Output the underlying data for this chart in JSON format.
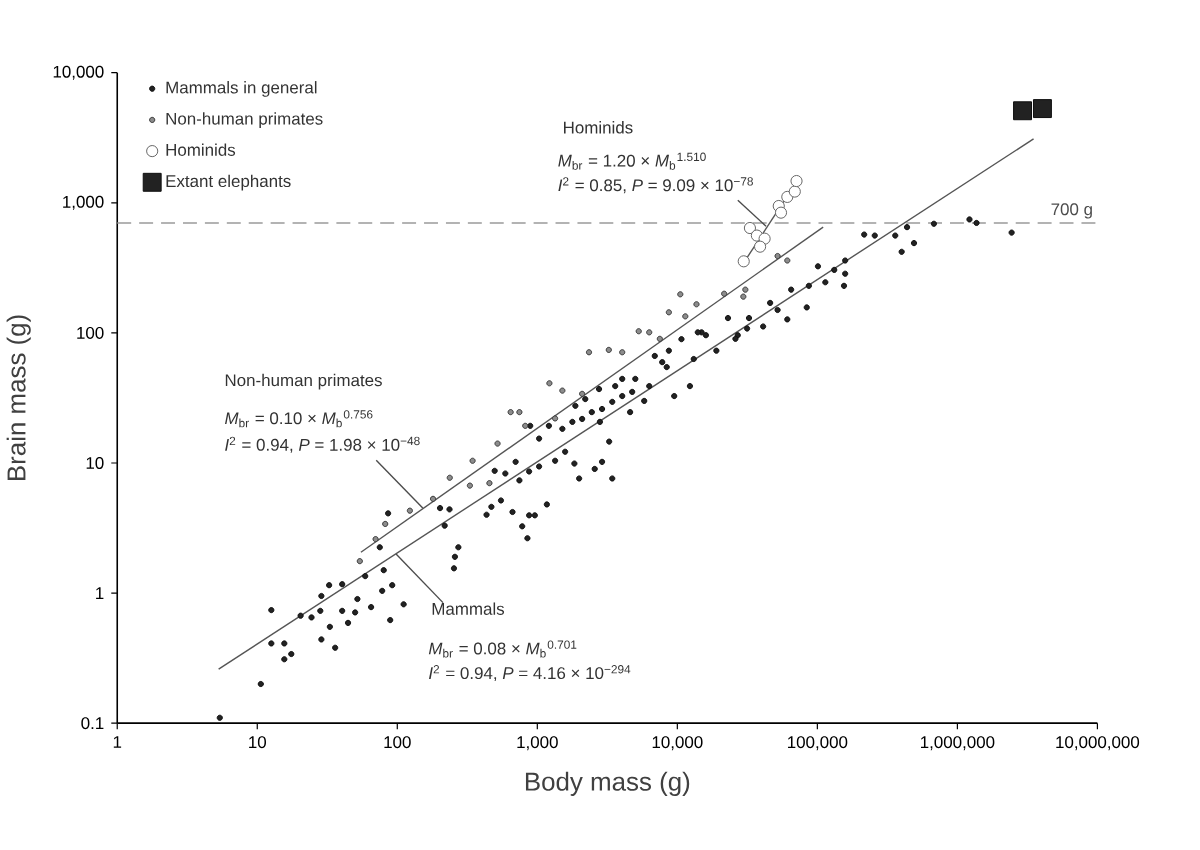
{
  "chart_data": {
    "type": "scatter",
    "xlabel": "Body mass (g)",
    "ylabel": "Brain mass (g)",
    "xlim": [
      1,
      10000000
    ],
    "ylim": [
      0.1,
      10000
    ],
    "xticks": [
      1,
      10,
      100,
      {
        "value": 1000,
        "label": "1,000"
      },
      {
        "value": 10000,
        "label": "10,000"
      },
      {
        "value": 100000,
        "label": "100,000"
      },
      {
        "value": 1000000,
        "label": "1,000,000"
      },
      {
        "value": 10000000,
        "label": "10,000,000"
      }
    ],
    "yticks": [
      0.1,
      1,
      10,
      100,
      {
        "value": 1000,
        "label": "1,000"
      },
      {
        "value": 10000,
        "label": "10,000"
      }
    ],
    "grid": false,
    "legend": "top left",
    "log": "xy",
    "series": [
      {
        "name": "Mammals in general",
        "marker": "circle",
        "color": "#222222",
        "x": [
          5.4,
          10.6,
          12.6,
          12.6,
          15.6,
          15.6,
          17.5,
          20.4,
          24.4,
          28.2,
          28.7,
          28.7,
          33,
          32.6,
          36,
          40.4,
          40.4,
          44.5,
          50,
          51.9,
          59,
          65,
          78,
          80,
          92,
          89,
          111,
          75,
          86,
          202,
          236,
          218,
          273,
          258,
          254,
          434,
          496,
          591,
          665,
          700,
          1990,
          3430,
          2570,
          2900,
          1840,
          874,
          780,
          850,
          960,
          1170,
          550,
          470,
          745,
          874,
          1030,
          1340,
          1580,
          1030,
          890,
          1210,
          1510,
          1780,
          2090,
          2450,
          2900,
          3430,
          4040,
          4760,
          5010,
          4040,
          3600,
          2760,
          2200,
          1870,
          2800,
          3260,
          4600,
          5800,
          6300,
          7800,
          8700,
          9500,
          12300,
          13100,
          14900,
          10700,
          8400,
          6900,
          2440000,
          1220000,
          1370000,
          680000,
          437000,
          360000,
          400000,
          490000,
          216000,
          257000,
          158000,
          158000,
          155000,
          132000,
          114000,
          101000,
          84000,
          87000,
          65000,
          61000,
          52000,
          46000,
          41000,
          32500,
          31500,
          27000,
          26000,
          23000,
          19000,
          16000,
          14000
        ],
        "values": [
          0.11,
          0.2,
          0.74,
          0.41,
          0.41,
          0.31,
          0.34,
          0.67,
          0.65,
          0.73,
          0.95,
          0.44,
          0.55,
          1.15,
          0.38,
          1.17,
          0.73,
          0.59,
          0.71,
          0.9,
          1.35,
          0.78,
          1.04,
          1.5,
          1.15,
          0.62,
          0.82,
          2.25,
          4.1,
          4.5,
          4.4,
          3.3,
          2.25,
          1.9,
          1.55,
          4.0,
          8.7,
          8.3,
          4.2,
          10.2,
          7.6,
          7.6,
          9.0,
          10.2,
          9.9,
          3.96,
          3.26,
          2.64,
          3.96,
          4.8,
          5.15,
          4.6,
          7.35,
          8.6,
          9.4,
          10.4,
          12.2,
          15.4,
          19.3,
          19.3,
          18.3,
          20.7,
          21.8,
          24.6,
          26,
          29.5,
          32.7,
          35.2,
          44.3,
          44.3,
          39,
          37,
          31,
          27.5,
          20.7,
          14.6,
          24.6,
          30,
          39,
          59.6,
          73,
          32.7,
          39,
          63,
          101,
          89.5,
          54.6,
          66.5,
          590,
          745,
          700,
          690,
          650,
          560,
          420,
          490,
          570,
          560,
          360,
          285,
          230,
          305,
          245,
          325,
          157,
          230,
          215,
          127,
          150,
          170,
          112,
          130,
          108,
          96,
          90,
          130,
          73,
          96,
          101
        ]
      },
      {
        "name": "Non-human primates",
        "marker": "circle",
        "color": "#8c8c8c",
        "x": [
          54,
          70,
          82,
          123,
          180,
          237,
          330,
          345,
          455,
          520,
          645,
          745,
          1220,
          1510,
          2340,
          3240,
          4040,
          5300,
          6300,
          7500,
          8700,
          13700,
          10500,
          820,
          1340,
          2090,
          21600,
          30600,
          29600,
          52000,
          61000,
          11400
        ],
        "values": [
          1.76,
          2.6,
          3.4,
          4.3,
          5.3,
          7.7,
          6.7,
          10.4,
          7.0,
          14.1,
          24.6,
          24.6,
          41,
          36,
          71,
          74,
          71,
          103,
          101,
          90,
          144,
          166,
          198,
          19.3,
          22,
          34,
          200,
          215,
          190,
          390,
          360,
          134
        ]
      },
      {
        "name": "Hominids",
        "marker": "circle",
        "color": "#ffffff",
        "x": [
          29800,
          33000,
          37000,
          42000,
          39000,
          53000,
          55000,
          61000,
          69000,
          71000
        ],
        "values": [
          355,
          640,
          560,
          530,
          460,
          945,
          840,
          1110,
          1220,
          1470
        ]
      },
      {
        "name": "Extant elephants",
        "marker": "square",
        "color": "#222222",
        "x": [
          2920000,
          4050000
        ],
        "values": [
          5100,
          5300
        ]
      },
      {
        "type": "line",
        "color": "#555555",
        "x": [
          5.3,
          3500000
        ],
        "values": [
          0.26,
          3100
        ]
      },
      {
        "type": "line",
        "color": "#555555",
        "x": [
          55,
          110000
        ],
        "values": [
          2.06,
          650
        ]
      },
      {
        "type": "line",
        "color": "#555555",
        "x": [
          30000,
          71000
        ],
        "values": [
          350,
          1450
        ]
      }
    ],
    "ref_lines": [
      {
        "axis": "y",
        "value": 700,
        "label": "700 g",
        "color": "#9a9a9a",
        "line_style": "dashed"
      }
    ],
    "annotations": [
      "Non-human primates",
      "*M*$_{br}$ = 0.10 × *M*$_{b}$$^{0.756}$",
      {
        "text": "*I*$^{2}$ = 0.94, *P* = 1.98 × 10$^{−48}$",
        "x": 152,
        "y": 4.5
      },
      {
        "text": "Mammals",
        "x": 98,
        "y": 2.0
      },
      "*M*$_{br}$ = 0.08 × *M*$_{b}$$^{0.701}$",
      "*I*$^{2}$ = 0.94, *P* = 4.16 × 10$^{−294}$",
      "Hominids",
      "*M*$_{br}$ = 1.20 × *M*$_{b}$$^{1.510}$",
      {
        "text": "*I*$^{2}$ = 0.85, *P* = 9.09 × 10$^{−78}$",
        "x": 43000,
        "y": 660
      }
    ]
  }
}
